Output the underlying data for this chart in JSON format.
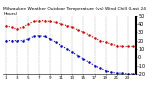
{
  "title": "Milwaukee Weather Outdoor Temperature (vs) Wind Chill (Last 24 Hours)",
  "temp_color": "#dd0000",
  "windchill_color": "#0000cc",
  "background_color": "#ffffff",
  "grid_color": "#888888",
  "ylim": [
    -20,
    50
  ],
  "yticks": [
    50,
    40,
    30,
    20,
    10,
    0,
    -10,
    -20
  ],
  "ytick_labels": [
    "50",
    "40",
    "30",
    "20",
    "10",
    "0",
    "-10",
    "-20"
  ],
  "temp_x": [
    0,
    1,
    2,
    3,
    4,
    5,
    6,
    7,
    8,
    9,
    10,
    11,
    12,
    13,
    14,
    15,
    16,
    17,
    18,
    19,
    20,
    21,
    22,
    23
  ],
  "temp_y": [
    38,
    36,
    34,
    36,
    40,
    43,
    44,
    44,
    43,
    42,
    40,
    38,
    36,
    33,
    30,
    27,
    23,
    20,
    18,
    16,
    14,
    13,
    13,
    13
  ],
  "windchill_x": [
    0,
    1,
    2,
    3,
    4,
    5,
    6,
    7,
    8,
    9,
    10,
    11,
    12,
    13,
    14,
    15,
    16,
    17,
    18,
    19,
    20,
    21,
    22,
    23
  ],
  "windchill_y": [
    20,
    20,
    20,
    20,
    22,
    25,
    26,
    25,
    22,
    18,
    14,
    10,
    6,
    2,
    -2,
    -6,
    -10,
    -13,
    -16,
    -18,
    -19,
    -19,
    -20,
    -20
  ],
  "xlim": [
    -0.5,
    23.5
  ],
  "ylabel_fontsize": 3.5,
  "xlabel_fontsize": 3.0,
  "title_fontsize": 3.2,
  "linewidth": 0.8,
  "markersize": 1.5
}
